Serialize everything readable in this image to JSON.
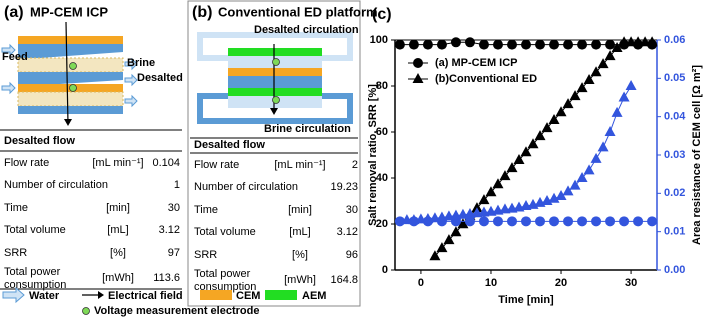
{
  "panels": [
    {
      "label": "(a)",
      "title": "MP-CEM ICP",
      "diagram_labels": {
        "feed": "Feed",
        "brine": "Brine",
        "desalted": "Desalted"
      },
      "table": {
        "header": "Desalted flow",
        "rows": [
          [
            "Flow rate",
            "[mL min⁻¹]",
            0.104
          ],
          [
            "Number of circulation",
            "",
            1
          ],
          [
            "Time",
            "[min]",
            30
          ],
          [
            "Total volume",
            "[mL]",
            3.12
          ],
          [
            "SRR",
            "[%]",
            97
          ],
          [
            "Total power consumption",
            "[mWh]",
            113.6
          ]
        ]
      }
    },
    {
      "label": "(b)",
      "title": "Conventional ED platform",
      "diagram_labels": {
        "desalted_circulation": "Desalted circulation",
        "brine_circulation": "Brine circulation"
      },
      "table": {
        "header": "Desalted flow",
        "rows": [
          [
            "Flow rate",
            "[mL min⁻¹]",
            2
          ],
          [
            "Number of circulation",
            "",
            19.23
          ],
          [
            "Time",
            "[min]",
            30
          ],
          [
            "Total volume",
            "[mL]",
            3.12
          ],
          [
            "SRR",
            "[%]",
            96
          ],
          [
            "Total power consumption",
            "[mWh]",
            164.8
          ]
        ]
      }
    }
  ],
  "legend": {
    "water": "Water",
    "electrical_field": "Electrical field",
    "cem": "CEM",
    "aem": "AEM",
    "electrode": "Voltage measurement electrode"
  },
  "chart_data": {
    "type": "line",
    "label": "(c)",
    "x_label": "Time [min]",
    "y_label": "Salt removal ratio, SRR [%]",
    "y2_label": "Area resistance of CEM cell [Ω m²]",
    "xlim": [
      -3.7,
      33.7
    ],
    "xticks": [
      0,
      10,
      20,
      30
    ],
    "ylim": [
      0,
      100
    ],
    "yticks": [
      0,
      20,
      40,
      60,
      80,
      100
    ],
    "y2lim": [
      0,
      0.06
    ],
    "y2ticks": [
      {
        "value": 0,
        "label": "0.00"
      },
      {
        "value": 0.01,
        "label": "0.01"
      },
      {
        "value": 0.02,
        "label": "0.02"
      },
      {
        "value": 0.03,
        "label": "0.03"
      },
      {
        "value": 0.04,
        "label": "0.04"
      },
      {
        "value": 0.05,
        "label": "0.05"
      },
      {
        "value": 0.06,
        "label": "0.06"
      }
    ],
    "y2_color": "#3355dd",
    "legend_position": "upper left",
    "series": [
      {
        "name": "(a) MP-CEM ICP",
        "color": "#000000",
        "marker": "circle",
        "x": [
          -3,
          -1,
          1,
          3,
          5,
          7,
          9,
          11,
          13,
          15,
          17,
          19,
          21,
          23,
          25,
          27,
          29,
          31,
          33
        ],
        "values": [
          98,
          98,
          98,
          98,
          99,
          99,
          98,
          98,
          98,
          98,
          98,
          98,
          98,
          98,
          98,
          98,
          98,
          98,
          98
        ]
      },
      {
        "name": "(b)Conventional ED",
        "color": "#000000",
        "marker": "triangle",
        "x": [
          2,
          3,
          4,
          5,
          6,
          7,
          8,
          9,
          10,
          11,
          12,
          13,
          14,
          15,
          16,
          17,
          18,
          19,
          20,
          21,
          22,
          23,
          24,
          25,
          26,
          27,
          28,
          29,
          30,
          31,
          32,
          33
        ],
        "values": [
          6,
          9.5,
          13,
          16.4,
          19.9,
          23.4,
          26.9,
          30.4,
          33.8,
          37.3,
          40.8,
          44.3,
          47.8,
          51.2,
          54.7,
          58.2,
          61.7,
          65.2,
          68.6,
          72.1,
          75.6,
          79.1,
          82.6,
          86,
          89.5,
          93,
          96.5,
          99,
          99,
          99,
          99,
          99
        ]
      },
      {
        "color": "#3355dd",
        "marker": "circle",
        "axis": "y2",
        "x": [
          -3,
          -1,
          1,
          3,
          5,
          7,
          9,
          11,
          13,
          15,
          17,
          19,
          21,
          23,
          25,
          27,
          29,
          31,
          33
        ],
        "values": [
          0.0127,
          0.0127,
          0.0127,
          0.0127,
          0.0127,
          0.0127,
          0.0127,
          0.0127,
          0.0127,
          0.0127,
          0.0127,
          0.0127,
          0.0127,
          0.0127,
          0.0127,
          0.0127,
          0.0127,
          0.0127,
          0.0127
        ]
      },
      {
        "color": "#3355dd",
        "marker": "triangle",
        "axis": "y2",
        "x": [
          -2,
          -1,
          0,
          1,
          2,
          3,
          4,
          5,
          6,
          7,
          8,
          9,
          10,
          11,
          12,
          13,
          14,
          15,
          16,
          17,
          18,
          19,
          20,
          21,
          22,
          23,
          24,
          25,
          26,
          27,
          28,
          29,
          30
        ],
        "values": [
          0.013,
          0.013,
          0.0132,
          0.0133,
          0.0135,
          0.0137,
          0.014,
          0.0142,
          0.0144,
          0.0146,
          0.0148,
          0.015,
          0.0152,
          0.0155,
          0.0158,
          0.016,
          0.0163,
          0.0167,
          0.017,
          0.0175,
          0.018,
          0.0186,
          0.0193,
          0.0205,
          0.022,
          0.024,
          0.026,
          0.029,
          0.032,
          0.036,
          0.041,
          0.045,
          0.048
        ]
      }
    ]
  }
}
